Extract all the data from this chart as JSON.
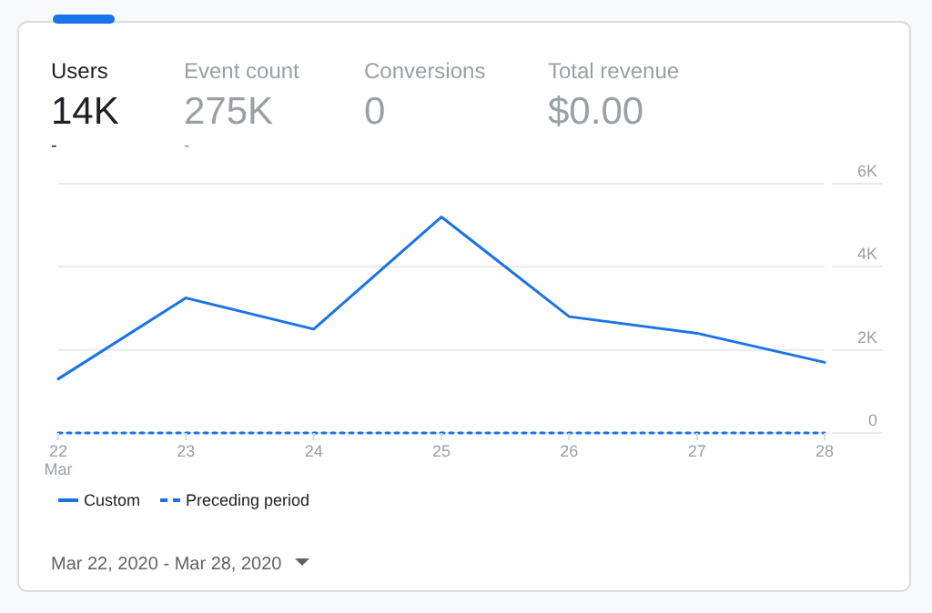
{
  "chart_data": {
    "type": "line",
    "categories": [
      "22\nMar",
      "23",
      "24",
      "25",
      "26",
      "27",
      "28"
    ],
    "series": [
      {
        "name": "Custom",
        "color": "#1a73e8",
        "values": [
          1300,
          3250,
          2500,
          5200,
          2800,
          2400,
          1700
        ],
        "line_style": "solid"
      },
      {
        "name": "Preceding period",
        "color": "#1a73e8",
        "values": [
          0,
          0,
          0,
          0,
          0,
          0,
          0
        ],
        "line_style": "dashed"
      }
    ],
    "ylim": [
      0,
      6000
    ],
    "yticks": [
      0,
      {
        "value": 2000,
        "label": "2K"
      },
      {
        "value": 4000,
        "label": "4K"
      },
      {
        "value": 6000,
        "label": "6K"
      }
    ],
    "grid": "y",
    "legend": "bottom left",
    "marker": "none",
    "annotations": [
      "Users",
      "14K",
      "-",
      "Event count",
      "275K",
      "-",
      "Conversions",
      "0",
      "Total revenue",
      "$0.00",
      "Mar 22, 2020 - Mar 28, 2020"
    ]
  }
}
